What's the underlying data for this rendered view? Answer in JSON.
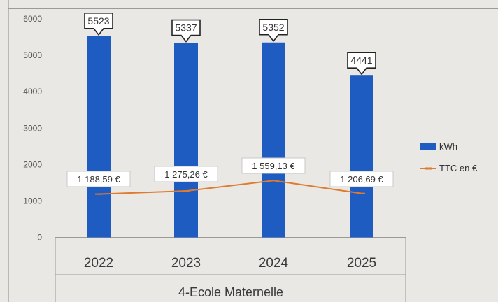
{
  "chart_data": {
    "type": "bar",
    "categories": [
      "2022",
      "2023",
      "2024",
      "2025"
    ],
    "xlabel": "4-Ecole Maternelle",
    "ylim": [
      0,
      6000
    ],
    "yticks": [
      "0",
      "1000",
      "2000",
      "3000",
      "4000",
      "5000",
      "6000"
    ],
    "grid": false,
    "legend_position": "right",
    "series": [
      {
        "name": "kWh",
        "type": "bar",
        "color": "#1f5cc2",
        "values": [
          5523,
          5337,
          5352,
          4441
        ],
        "labels": [
          "5523",
          "5337",
          "5352",
          "4441"
        ]
      },
      {
        "name": "TTC en €",
        "type": "line",
        "color": "#e07b2e",
        "values": [
          1188.59,
          1275.26,
          1559.13,
          1206.69
        ],
        "labels": [
          "1 188,59 €",
          "1 275,26 €",
          "1 559,13 €",
          "1 206,69 €"
        ]
      }
    ]
  }
}
